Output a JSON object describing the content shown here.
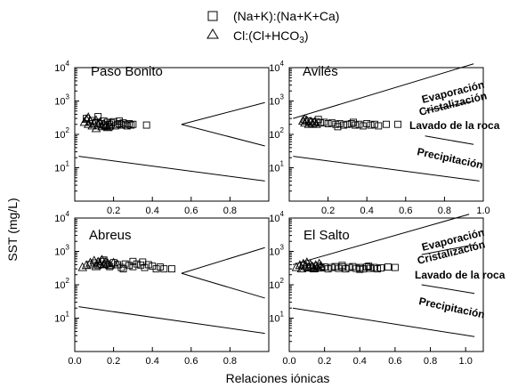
{
  "chart_data": {
    "type": "scatter",
    "xlabel": "Relaciones iónicas",
    "ylabel": "SST (mg/L)",
    "legend": {
      "placement": "top-center",
      "entries": [
        {
          "marker": "square",
          "label": "(Na+K):(Na+K+Ca)"
        },
        {
          "marker": "triangle",
          "label_main": "Cl:(Cl+HCO",
          "label_sub": "3",
          "label_end": ")"
        }
      ]
    },
    "y_tick_labels": [
      {
        "value": 1,
        "base": "10",
        "exp": "1"
      },
      {
        "value": 2,
        "base": "10",
        "exp": "2"
      },
      {
        "value": 3,
        "base": "10",
        "exp": "3"
      },
      {
        "value": 4,
        "base": "10",
        "exp": "4"
      }
    ],
    "zones": {
      "evaporation": "Evaporación",
      "crystallization": "Cristalización",
      "rock_wash": "Lavado de la roca",
      "precipitation": "Precipitación"
    },
    "panels": [
      {
        "title": "Paso Bonito",
        "xlim": [
          0.0,
          1.0
        ],
        "ylim_log10": [
          0,
          4
        ],
        "x_ticks": [
          0.2,
          0.4,
          0.6,
          0.8
        ],
        "x_tick_labels": [
          "0.2",
          "0.4",
          "0.6",
          "0.8"
        ],
        "show_zone_labels": false,
        "boundary_lines": [
          [
            [
              0.55,
              200
            ],
            [
              0.98,
              900
            ]
          ],
          [
            [
              0.55,
              200
            ],
            [
              0.98,
              45
            ]
          ],
          [
            [
              0.02,
              22
            ],
            [
              0.98,
              4
            ]
          ]
        ],
        "squares": [
          [
            0.06,
            300
          ],
          [
            0.09,
            260
          ],
          [
            0.11,
            230
          ],
          [
            0.13,
            210
          ],
          [
            0.15,
            250
          ],
          [
            0.16,
            190
          ],
          [
            0.17,
            230
          ],
          [
            0.18,
            200
          ],
          [
            0.19,
            220
          ],
          [
            0.2,
            240
          ],
          [
            0.21,
            180
          ],
          [
            0.22,
            200
          ],
          [
            0.23,
            210
          ],
          [
            0.24,
            190
          ],
          [
            0.25,
            220
          ],
          [
            0.26,
            200
          ],
          [
            0.27,
            180
          ],
          [
            0.28,
            210
          ],
          [
            0.29,
            190
          ],
          [
            0.3,
            200
          ],
          [
            0.12,
            340
          ],
          [
            0.18,
            170
          ],
          [
            0.23,
            250
          ],
          [
            0.37,
            190
          ]
        ],
        "triangles": [
          [
            0.05,
            230
          ],
          [
            0.06,
            280
          ],
          [
            0.07,
            200
          ],
          [
            0.08,
            240
          ],
          [
            0.09,
            180
          ],
          [
            0.1,
            210
          ],
          [
            0.11,
            260
          ],
          [
            0.12,
            190
          ],
          [
            0.13,
            230
          ],
          [
            0.14,
            170
          ],
          [
            0.15,
            200
          ],
          [
            0.16,
            180
          ],
          [
            0.17,
            160
          ],
          [
            0.18,
            190
          ],
          [
            0.07,
            320
          ],
          [
            0.11,
            150
          ]
        ]
      },
      {
        "title": "Avilés",
        "xlim": [
          0.0,
          1.0
        ],
        "ylim_log10": [
          0,
          4
        ],
        "x_ticks": [
          0.2,
          0.4,
          0.6,
          0.8,
          1.0
        ],
        "x_tick_labels": [
          "0.2",
          "0.4",
          "0.6",
          "0.8",
          "1.0"
        ],
        "show_zone_labels": true,
        "boundary_lines": [
          [
            [
              0.02,
              300
            ],
            [
              0.95,
              13000
            ]
          ],
          [
            [
              0.7,
              500
            ],
            [
              0.95,
              1000
            ]
          ],
          [
            [
              0.7,
              90
            ],
            [
              0.95,
              50
            ]
          ],
          [
            [
              0.02,
              22
            ],
            [
              0.98,
              4
            ]
          ]
        ],
        "squares": [
          [
            0.1,
            250
          ],
          [
            0.12,
            230
          ],
          [
            0.14,
            240
          ],
          [
            0.16,
            220
          ],
          [
            0.18,
            230
          ],
          [
            0.2,
            210
          ],
          [
            0.22,
            220
          ],
          [
            0.24,
            200
          ],
          [
            0.26,
            210
          ],
          [
            0.28,
            190
          ],
          [
            0.3,
            200
          ],
          [
            0.32,
            210
          ],
          [
            0.34,
            190
          ],
          [
            0.36,
            200
          ],
          [
            0.38,
            180
          ],
          [
            0.4,
            210
          ],
          [
            0.42,
            190
          ],
          [
            0.44,
            200
          ],
          [
            0.46,
            180
          ],
          [
            0.5,
            200
          ],
          [
            0.56,
            200
          ],
          [
            0.15,
            280
          ],
          [
            0.25,
            170
          ],
          [
            0.33,
            230
          ]
        ],
        "triangles": [
          [
            0.07,
            250
          ],
          [
            0.08,
            220
          ],
          [
            0.09,
            260
          ],
          [
            0.1,
            200
          ],
          [
            0.11,
            240
          ],
          [
            0.12,
            210
          ],
          [
            0.13,
            230
          ],
          [
            0.14,
            200
          ],
          [
            0.08,
            280
          ]
        ]
      },
      {
        "title": "Abreus",
        "xlim": [
          0.0,
          1.0
        ],
        "ylim_log10": [
          0,
          4
        ],
        "x_ticks": [
          0.0,
          0.2,
          0.4,
          0.6,
          0.8
        ],
        "x_tick_labels": [
          "0.0",
          "0.2",
          "0.4",
          "0.6",
          "0.8"
        ],
        "show_zone_labels": false,
        "boundary_lines": [
          [
            [
              0.55,
              220
            ],
            [
              0.98,
              1300
            ]
          ],
          [
            [
              0.55,
              220
            ],
            [
              0.98,
              40
            ]
          ],
          [
            [
              0.02,
              22
            ],
            [
              0.98,
              3.5
            ]
          ]
        ],
        "squares": [
          [
            0.08,
            400
          ],
          [
            0.1,
            450
          ],
          [
            0.12,
            380
          ],
          [
            0.14,
            500
          ],
          [
            0.16,
            420
          ],
          [
            0.18,
            350
          ],
          [
            0.2,
            460
          ],
          [
            0.22,
            400
          ],
          [
            0.24,
            330
          ],
          [
            0.26,
            420
          ],
          [
            0.28,
            380
          ],
          [
            0.3,
            350
          ],
          [
            0.32,
            420
          ],
          [
            0.34,
            390
          ],
          [
            0.36,
            330
          ],
          [
            0.38,
            400
          ],
          [
            0.4,
            360
          ],
          [
            0.42,
            300
          ],
          [
            0.44,
            340
          ],
          [
            0.46,
            300
          ],
          [
            0.5,
            300
          ],
          [
            0.15,
            550
          ],
          [
            0.25,
            300
          ],
          [
            0.35,
            480
          ],
          [
            0.3,
            500
          ]
        ],
        "triangles": [
          [
            0.04,
            330
          ],
          [
            0.06,
            380
          ],
          [
            0.08,
            450
          ],
          [
            0.1,
            520
          ],
          [
            0.12,
            480
          ],
          [
            0.13,
            420
          ],
          [
            0.14,
            550
          ],
          [
            0.15,
            400
          ],
          [
            0.16,
            470
          ],
          [
            0.17,
            430
          ],
          [
            0.18,
            380
          ],
          [
            0.2,
            450
          ],
          [
            0.22,
            400
          ],
          [
            0.11,
            350
          ]
        ]
      },
      {
        "title": "El Salto",
        "xlim": [
          0.0,
          1.1
        ],
        "ylim_log10": [
          0,
          4
        ],
        "x_ticks": [
          0.0,
          0.2,
          0.4,
          0.6,
          0.8,
          1.0
        ],
        "x_tick_labels": [
          "0.0",
          "0.2",
          "0.4",
          "0.6",
          "0.8",
          "1.0"
        ],
        "show_zone_labels": true,
        "boundary_lines": [
          [
            [
              0.02,
              400
            ],
            [
              1.02,
              13000
            ]
          ],
          [
            [
              0.75,
              800
            ],
            [
              1.05,
              1600
            ]
          ],
          [
            [
              0.75,
              100
            ],
            [
              1.05,
              55
            ]
          ],
          [
            [
              0.02,
              20
            ],
            [
              1.05,
              2.8
            ]
          ]
        ],
        "squares": [
          [
            0.08,
            380
          ],
          [
            0.1,
            330
          ],
          [
            0.12,
            350
          ],
          [
            0.14,
            310
          ],
          [
            0.16,
            360
          ],
          [
            0.18,
            320
          ],
          [
            0.2,
            340
          ],
          [
            0.22,
            300
          ],
          [
            0.24,
            330
          ],
          [
            0.26,
            350
          ],
          [
            0.28,
            310
          ],
          [
            0.3,
            340
          ],
          [
            0.32,
            300
          ],
          [
            0.34,
            330
          ],
          [
            0.36,
            350
          ],
          [
            0.38,
            310
          ],
          [
            0.4,
            330
          ],
          [
            0.42,
            300
          ],
          [
            0.44,
            340
          ],
          [
            0.46,
            310
          ],
          [
            0.48,
            330
          ],
          [
            0.5,
            300
          ],
          [
            0.52,
            320
          ],
          [
            0.56,
            340
          ],
          [
            0.6,
            330
          ],
          [
            0.3,
            380
          ],
          [
            0.4,
            290
          ],
          [
            0.45,
            360
          ]
        ],
        "triangles": [
          [
            0.04,
            330
          ],
          [
            0.06,
            380
          ],
          [
            0.07,
            300
          ],
          [
            0.08,
            420
          ],
          [
            0.09,
            350
          ],
          [
            0.1,
            460
          ],
          [
            0.11,
            320
          ],
          [
            0.12,
            400
          ],
          [
            0.13,
            350
          ],
          [
            0.14,
            300
          ],
          [
            0.15,
            380
          ],
          [
            0.16,
            330
          ],
          [
            0.17,
            420
          ],
          [
            0.18,
            360
          ]
        ]
      }
    ]
  }
}
